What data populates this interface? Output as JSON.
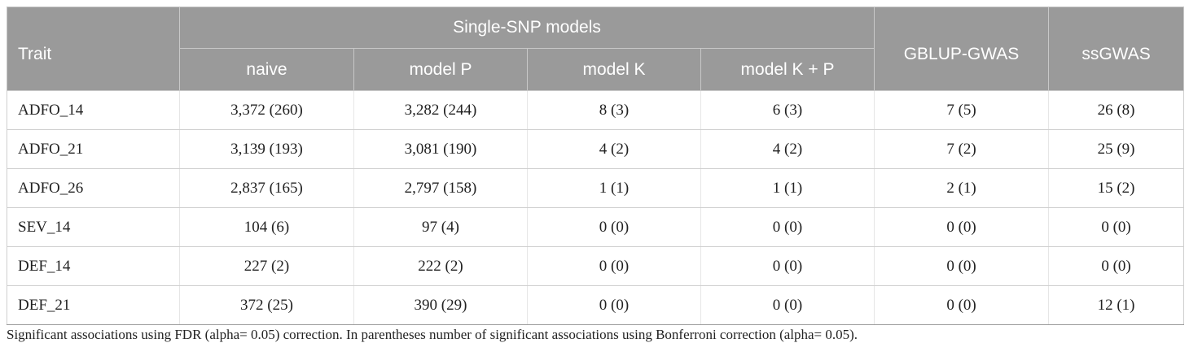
{
  "table": {
    "headers": {
      "trait": "Trait",
      "single_snp_models": "Single-SNP models",
      "gblup_gwas": "GBLUP-GWAS",
      "ssgwas": "ssGWAS",
      "sub": [
        "naive",
        "model P",
        "model K",
        "model K + P"
      ]
    },
    "rows": [
      {
        "trait": "ADFO_14",
        "values": [
          "3,372 (260)",
          "3,282 (244)",
          "8 (3)",
          "6 (3)",
          "7 (5)",
          "26 (8)"
        ]
      },
      {
        "trait": "ADFO_21",
        "values": [
          "3,139 (193)",
          "3,081 (190)",
          "4 (2)",
          "4 (2)",
          "7 (2)",
          "25 (9)"
        ]
      },
      {
        "trait": "ADFO_26",
        "values": [
          "2,837 (165)",
          "2,797 (158)",
          "1 (1)",
          "1 (1)",
          "2 (1)",
          "15 (2)"
        ]
      },
      {
        "trait": "SEV_14",
        "values": [
          "104 (6)",
          "97 (4)",
          "0 (0)",
          "0 (0)",
          "0 (0)",
          "0 (0)"
        ]
      },
      {
        "trait": "DEF_14",
        "values": [
          "227 (2)",
          "222 (2)",
          "0 (0)",
          "0 (0)",
          "0 (0)",
          "0 (0)"
        ]
      },
      {
        "trait": "DEF_21",
        "values": [
          "372 (25)",
          "390 (29)",
          "0 (0)",
          "0 (0)",
          "0 (0)",
          "12 (1)"
        ]
      }
    ]
  },
  "footnote": "Significant associations using FDR (alpha= 0.05) correction. In parentheses number of significant associations using Bonferroni correction (alpha= 0.05).",
  "colors": {
    "header_bg": "#9a9a9a",
    "header_text": "#ffffff",
    "body_text": "#222222"
  }
}
